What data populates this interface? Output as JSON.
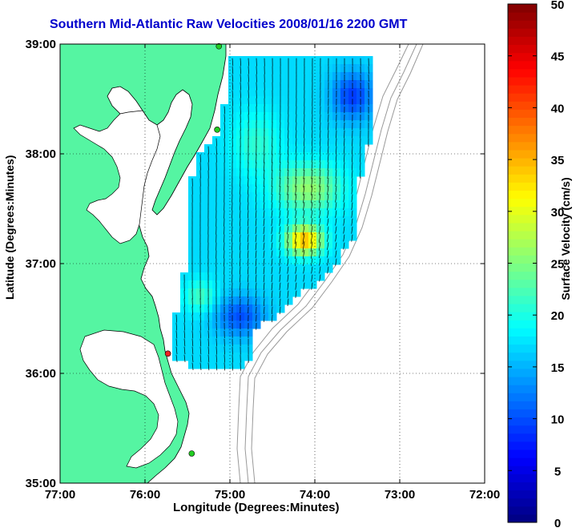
{
  "chart_data": {
    "type": "heatmap",
    "title": "Southern Mid-Atlantic Raw Velocities 2008/01/16 2200 GMT",
    "xlabel": "Longitude (Degrees:Minutes)",
    "ylabel": "Latitude (Degrees:Minutes)",
    "x_ticks": [
      "77:00",
      "76:00",
      "75:00",
      "74:00",
      "73:00",
      "72:00"
    ],
    "x_tick_values": [
      -77,
      -76,
      -75,
      -74,
      -73,
      -72
    ],
    "y_ticks": [
      "39:00",
      "38:00",
      "37:00",
      "36:00",
      "35:00"
    ],
    "y_tick_values": [
      39,
      38,
      37,
      36,
      35
    ],
    "xlim": [
      -77,
      -72
    ],
    "ylim": [
      35,
      39
    ],
    "grid": true,
    "colorbar": {
      "label": "Surface Velocity (cm/s)",
      "ticks": [
        0,
        5,
        10,
        15,
        20,
        25,
        30,
        35,
        40,
        45,
        50
      ],
      "range": [
        0,
        50
      ]
    },
    "colors": {
      "land": "#55f5a2",
      "water": "#ffffff",
      "bathymetry": "#999999",
      "arrows": "#000000",
      "title": "#0000cc"
    },
    "stations": [
      {
        "lon": -75.13,
        "lat": 38.98,
        "color": "#22cc22"
      },
      {
        "lon": -75.15,
        "lat": 38.22,
        "color": "#22cc22"
      },
      {
        "lon": -75.73,
        "lat": 36.18,
        "color": "#ee2222"
      },
      {
        "lon": -75.45,
        "lat": 35.27,
        "color": "#22cc22"
      }
    ]
  }
}
